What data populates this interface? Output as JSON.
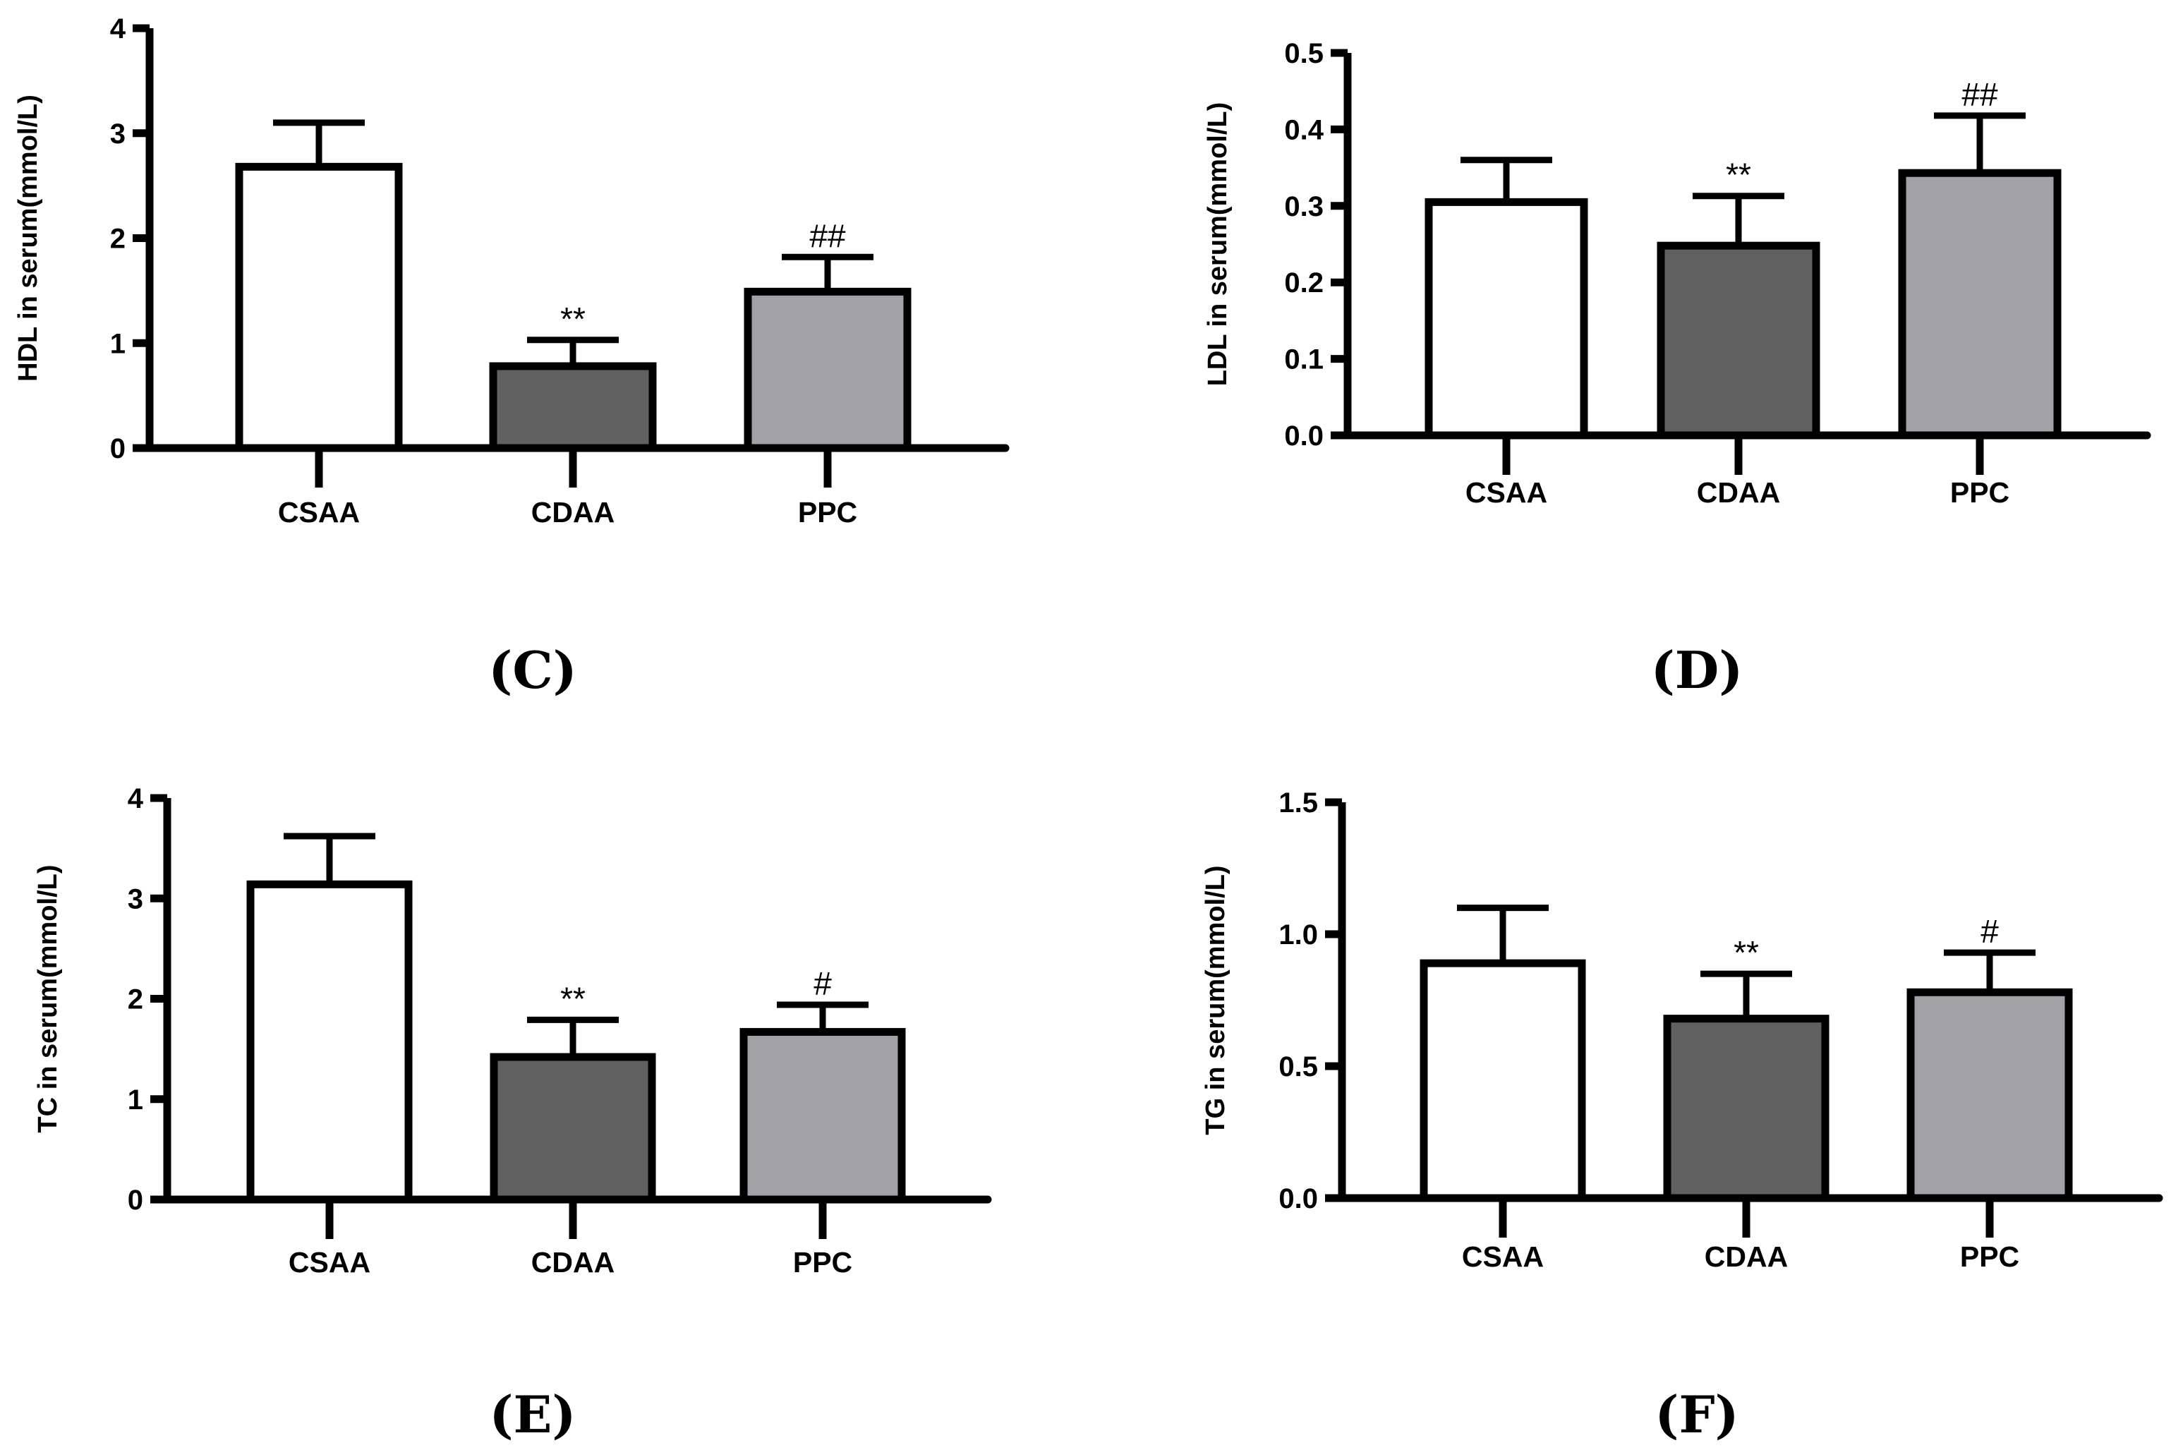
{
  "chart_data": [
    {
      "type": "bar",
      "panel": "(C)",
      "categories": [
        "CSAA",
        "CDAA",
        "PPC"
      ],
      "values": [
        2.68,
        0.78,
        1.49
      ],
      "errors": [
        0.42,
        0.25,
        0.33
      ],
      "significance": [
        "",
        "**",
        "##"
      ],
      "colors": [
        "#ffffff",
        "#606060",
        "#a2a2a6"
      ],
      "ylabel": "HDL in serum(mmol/L)",
      "ylim": [
        0,
        4
      ],
      "yticks": [
        0,
        1,
        2,
        3,
        4
      ],
      "ytick_labels": [
        "0",
        "1",
        "2",
        "3",
        "4"
      ]
    },
    {
      "type": "bar",
      "panel": "(D)",
      "categories": [
        "CSAA",
        "CDAA",
        "PPC"
      ],
      "values": [
        0.305,
        0.248,
        0.343
      ],
      "errors": [
        0.055,
        0.065,
        0.075
      ],
      "significance": [
        "",
        "**",
        "##"
      ],
      "colors": [
        "#ffffff",
        "#606060",
        "#a2a2a6"
      ],
      "ylabel": "LDL in serum(mmol/L)",
      "ylim": [
        0,
        0.5
      ],
      "yticks": [
        0,
        0.1,
        0.2,
        0.3,
        0.4,
        0.5
      ],
      "ytick_labels": [
        "0.0",
        "0.1",
        "0.2",
        "0.3",
        "0.4",
        "0.5"
      ]
    },
    {
      "type": "bar",
      "panel": "(E)",
      "categories": [
        "CSAA",
        "CDAA",
        "PPC"
      ],
      "values": [
        3.14,
        1.42,
        1.67
      ],
      "errors": [
        0.48,
        0.37,
        0.27
      ],
      "significance": [
        "",
        "**",
        "#"
      ],
      "colors": [
        "#ffffff",
        "#606060",
        "#a2a2a6"
      ],
      "ylabel": "TC in serum(mmol/L)",
      "ylim": [
        0,
        4
      ],
      "yticks": [
        0,
        1,
        2,
        3,
        4
      ],
      "ytick_labels": [
        "0",
        "1",
        "2",
        "3",
        "4"
      ]
    },
    {
      "type": "bar",
      "panel": "(F)",
      "categories": [
        "CSAA",
        "CDAA",
        "PPC"
      ],
      "values": [
        0.89,
        0.68,
        0.78
      ],
      "errors": [
        0.21,
        0.17,
        0.15
      ],
      "significance": [
        "",
        "**",
        "#"
      ],
      "colors": [
        "#ffffff",
        "#606060",
        "#a2a2a6"
      ],
      "ylabel": "TG in serum(mmol/L)",
      "ylim": [
        0,
        1.5
      ],
      "yticks": [
        0,
        0.5,
        1.0,
        1.5
      ],
      "ytick_labels": [
        "0.0",
        "0.5",
        "1.0",
        "1.5"
      ]
    }
  ]
}
